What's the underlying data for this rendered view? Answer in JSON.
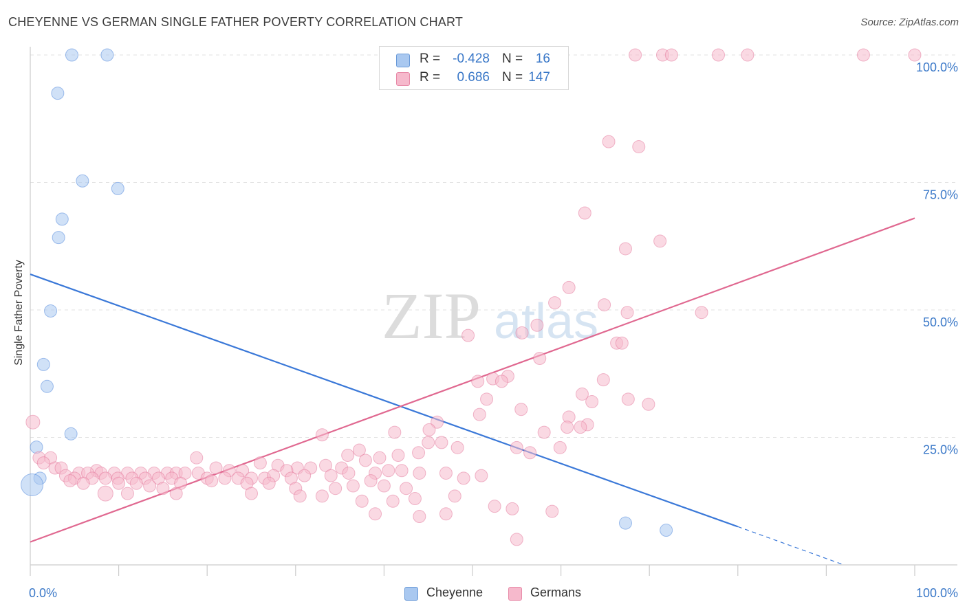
{
  "header": {
    "title": "CHEYENNE VS GERMAN SINGLE FATHER POVERTY CORRELATION CHART",
    "source": "Source: ZipAtlas.com"
  },
  "watermark": {
    "zip": "ZIP",
    "atlas": "atlas"
  },
  "legend_top": {
    "rows": [
      {
        "r_label": "R =",
        "r_value": "-0.428",
        "n_label": "N =",
        "n_value": "16",
        "color": "#a9c8f0"
      },
      {
        "r_label": "R =",
        "r_value": "0.686",
        "n_label": "N =",
        "n_value": "147",
        "color": "#f6b9cc"
      }
    ]
  },
  "legend_bottom": {
    "items": [
      {
        "label": "Cheyenne",
        "color": "#a9c8f0"
      },
      {
        "label": "Germans",
        "color": "#f6b9cc"
      }
    ]
  },
  "chart_data": {
    "type": "scatter",
    "title": "CHEYENNE VS GERMAN SINGLE FATHER POVERTY CORRELATION CHART",
    "xlabel": "",
    "ylabel": "Single Father Poverty",
    "xlim": [
      0,
      100
    ],
    "ylim": [
      0,
      100
    ],
    "x_tick_labels": [
      "0.0%",
      "100.0%"
    ],
    "y_tick_labels": [
      "25.0%",
      "50.0%",
      "75.0%",
      "100.0%"
    ],
    "y_tick_values": [
      25,
      50,
      75,
      100
    ],
    "grid": true,
    "series": [
      {
        "name": "Cheyenne",
        "color": "#3a78d8",
        "fill": "#a9c8f0",
        "points": [
          [
            4.7,
            100
          ],
          [
            8.7,
            100
          ],
          [
            3.1,
            92.5
          ],
          [
            5.9,
            75.3
          ],
          [
            9.9,
            73.8
          ],
          [
            3.6,
            67.8
          ],
          [
            3.2,
            64.2
          ],
          [
            2.3,
            49.8
          ],
          [
            1.5,
            39.3
          ],
          [
            1.9,
            35.0
          ],
          [
            4.6,
            25.7
          ],
          [
            0.7,
            23.1
          ],
          [
            1.1,
            17.0
          ],
          [
            0.2,
            15.7
          ],
          [
            67.3,
            8.2
          ],
          [
            71.9,
            6.8
          ]
        ],
        "trend": {
          "x": [
            0,
            80
          ],
          "y": [
            57.0,
            7.5
          ],
          "dashed_to": [
            92,
            0
          ]
        }
      },
      {
        "name": "Germans",
        "color": "#e06890",
        "fill": "#f6b9cc",
        "points": [
          [
            68.4,
            100
          ],
          [
            71.5,
            100
          ],
          [
            72.5,
            100
          ],
          [
            77.8,
            100
          ],
          [
            81.1,
            100
          ],
          [
            94.2,
            100
          ],
          [
            100,
            100
          ],
          [
            65.4,
            83.0
          ],
          [
            68.8,
            82.0
          ],
          [
            62.7,
            69.0
          ],
          [
            71.2,
            63.5
          ],
          [
            67.3,
            62.0
          ],
          [
            60.9,
            54.4
          ],
          [
            59.3,
            51.4
          ],
          [
            64.9,
            51.0
          ],
          [
            67.5,
            49.5
          ],
          [
            75.9,
            49.5
          ],
          [
            57.3,
            47.0
          ],
          [
            55.6,
            45.5
          ],
          [
            49.5,
            45.0
          ],
          [
            66.3,
            43.5
          ],
          [
            66.9,
            43.5
          ],
          [
            57.6,
            40.5
          ],
          [
            54.0,
            37.0
          ],
          [
            52.3,
            36.5
          ],
          [
            50.6,
            36.0
          ],
          [
            53.3,
            36.0
          ],
          [
            64.8,
            36.3
          ],
          [
            62.4,
            33.5
          ],
          [
            51.6,
            32.5
          ],
          [
            67.6,
            32.5
          ],
          [
            63.5,
            32.0
          ],
          [
            69.9,
            31.5
          ],
          [
            55.5,
            30.5
          ],
          [
            50.8,
            29.5
          ],
          [
            60.9,
            29.0
          ],
          [
            46.0,
            28.0
          ],
          [
            63.0,
            27.5
          ],
          [
            60.7,
            27.0
          ],
          [
            62.2,
            27.0
          ],
          [
            45.1,
            26.5
          ],
          [
            41.2,
            26.0
          ],
          [
            58.1,
            26.0
          ],
          [
            33.0,
            25.5
          ],
          [
            0.3,
            28.0
          ],
          [
            45.0,
            24.0
          ],
          [
            46.5,
            24.0
          ],
          [
            48.3,
            23.0
          ],
          [
            55.0,
            23.0
          ],
          [
            59.9,
            23.0
          ],
          [
            37.2,
            22.5
          ],
          [
            56.5,
            22.0
          ],
          [
            35.9,
            21.5
          ],
          [
            41.6,
            21.5
          ],
          [
            43.9,
            22.0
          ],
          [
            1.0,
            21.0
          ],
          [
            2.3,
            21.0
          ],
          [
            1.5,
            20.0
          ],
          [
            37.9,
            20.5
          ],
          [
            39.5,
            21.0
          ],
          [
            18.8,
            21.0
          ],
          [
            26.0,
            20.0
          ],
          [
            28.0,
            19.5
          ],
          [
            30.2,
            19.0
          ],
          [
            31.7,
            19.0
          ],
          [
            33.4,
            19.5
          ],
          [
            35.2,
            19.0
          ],
          [
            21.0,
            19.0
          ],
          [
            22.5,
            18.5
          ],
          [
            24.0,
            18.5
          ],
          [
            29.0,
            18.5
          ],
          [
            2.8,
            19.0
          ],
          [
            3.5,
            19.0
          ],
          [
            7.5,
            18.5
          ],
          [
            8.0,
            18.0
          ],
          [
            5.5,
            18.0
          ],
          [
            6.5,
            18.0
          ],
          [
            9.5,
            18.0
          ],
          [
            11.0,
            18.0
          ],
          [
            12.5,
            18.0
          ],
          [
            14.0,
            18.0
          ],
          [
            15.5,
            18.0
          ],
          [
            16.5,
            18.0
          ],
          [
            17.5,
            18.0
          ],
          [
            19.0,
            18.0
          ],
          [
            4.0,
            17.5
          ],
          [
            5.0,
            17.0
          ],
          [
            7.0,
            17.0
          ],
          [
            8.5,
            17.0
          ],
          [
            9.9,
            17.0
          ],
          [
            11.5,
            17.0
          ],
          [
            13.0,
            17.0
          ],
          [
            14.5,
            17.0
          ],
          [
            16.0,
            17.0
          ],
          [
            20.0,
            17.0
          ],
          [
            22.0,
            17.0
          ],
          [
            23.5,
            17.0
          ],
          [
            25.0,
            17.0
          ],
          [
            26.5,
            17.0
          ],
          [
            27.5,
            17.5
          ],
          [
            29.5,
            17.0
          ],
          [
            31.0,
            17.5
          ],
          [
            34.0,
            17.5
          ],
          [
            36.0,
            18.0
          ],
          [
            39.0,
            18.0
          ],
          [
            40.5,
            18.5
          ],
          [
            42.0,
            18.5
          ],
          [
            44.0,
            18.0
          ],
          [
            47.0,
            18.0
          ],
          [
            49.0,
            17.0
          ],
          [
            51.0,
            17.5
          ],
          [
            38.5,
            16.5
          ],
          [
            4.5,
            16.5
          ],
          [
            6.0,
            16.0
          ],
          [
            10.0,
            16.0
          ],
          [
            12.0,
            16.0
          ],
          [
            13.5,
            15.5
          ],
          [
            15.0,
            15.0
          ],
          [
            17.0,
            16.0
          ],
          [
            20.5,
            16.5
          ],
          [
            24.5,
            16.0
          ],
          [
            27.0,
            16.0
          ],
          [
            30.0,
            15.0
          ],
          [
            34.5,
            15.0
          ],
          [
            36.5,
            15.5
          ],
          [
            40.0,
            15.5
          ],
          [
            42.5,
            15.0
          ],
          [
            8.5,
            14.0
          ],
          [
            11.0,
            14.0
          ],
          [
            16.5,
            14.0
          ],
          [
            25.0,
            14.0
          ],
          [
            30.5,
            13.5
          ],
          [
            33.0,
            13.5
          ],
          [
            37.5,
            12.5
          ],
          [
            41.0,
            12.5
          ],
          [
            43.5,
            13.0
          ],
          [
            48.0,
            13.5
          ],
          [
            52.5,
            11.5
          ],
          [
            54.5,
            11.0
          ],
          [
            59.0,
            10.5
          ],
          [
            47.0,
            10.0
          ],
          [
            39.0,
            10.0
          ],
          [
            44.0,
            9.5
          ],
          [
            55.0,
            5.0
          ]
        ],
        "trend": {
          "x": [
            0,
            100
          ],
          "y": [
            4.5,
            68.0
          ]
        }
      }
    ]
  }
}
